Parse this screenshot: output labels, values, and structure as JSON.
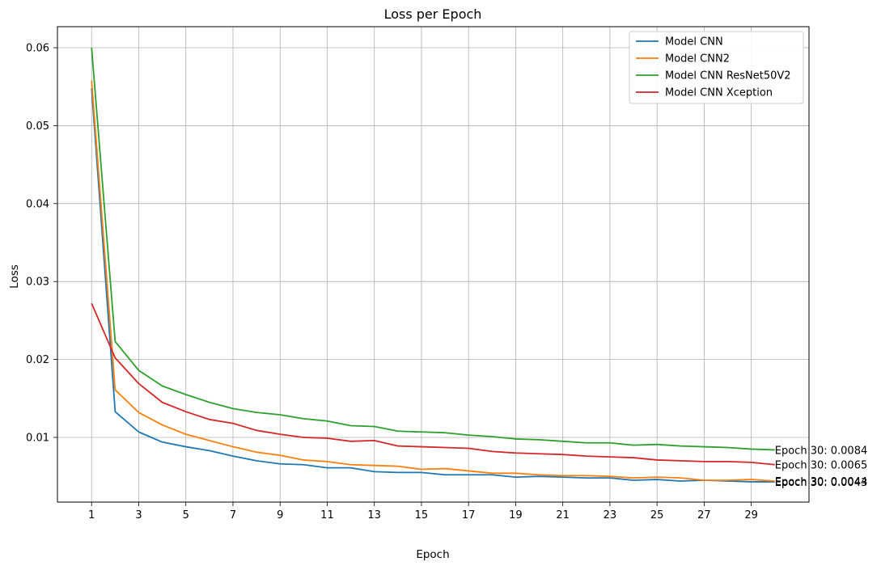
{
  "chart_data": {
    "type": "line",
    "title": "Loss per Epoch",
    "xlabel": "Epoch",
    "ylabel": "Loss",
    "xlim": [
      -0.45,
      31.45
    ],
    "ylim": [
      0.0017,
      0.0627
    ],
    "x_ticks": [
      1,
      3,
      5,
      7,
      9,
      11,
      13,
      15,
      17,
      19,
      21,
      23,
      25,
      27,
      29
    ],
    "y_ticks": [
      0.01,
      0.02,
      0.03,
      0.04,
      0.05,
      0.06
    ],
    "y_tick_labels": [
      "0.01",
      "0.02",
      "0.03",
      "0.04",
      "0.05",
      "0.06"
    ],
    "grid": true,
    "legend_position": "top-right",
    "x": [
      1,
      2,
      3,
      4,
      5,
      6,
      7,
      8,
      9,
      10,
      11,
      12,
      13,
      14,
      15,
      16,
      17,
      18,
      19,
      20,
      21,
      22,
      23,
      24,
      25,
      26,
      27,
      28,
      29,
      30
    ],
    "series": [
      {
        "name": "Model CNN",
        "color": "#1f77b4",
        "values": [
          0.0548,
          0.0133,
          0.0107,
          0.0094,
          0.0088,
          0.0083,
          0.0076,
          0.007,
          0.0066,
          0.0065,
          0.0061,
          0.0061,
          0.0056,
          0.0055,
          0.0055,
          0.0052,
          0.0052,
          0.0052,
          0.0049,
          0.005,
          0.0049,
          0.0048,
          0.0048,
          0.0045,
          0.0046,
          0.0044,
          0.0045,
          0.0044,
          0.0043,
          0.0043
        ]
      },
      {
        "name": "Model CNN2",
        "color": "#ff7f0e",
        "values": [
          0.0558,
          0.0161,
          0.0132,
          0.0116,
          0.0104,
          0.0096,
          0.0088,
          0.0081,
          0.0077,
          0.0071,
          0.0069,
          0.0065,
          0.0064,
          0.0063,
          0.0059,
          0.006,
          0.0057,
          0.0054,
          0.0054,
          0.0052,
          0.0051,
          0.0051,
          0.005,
          0.0048,
          0.0049,
          0.0048,
          0.0045,
          0.0045,
          0.0046,
          0.0044
        ]
      },
      {
        "name": "Model CNN ResNet50V2",
        "color": "#2ca02c",
        "values": [
          0.06,
          0.0223,
          0.0186,
          0.0166,
          0.0155,
          0.0145,
          0.0137,
          0.0132,
          0.0129,
          0.0124,
          0.0121,
          0.0115,
          0.0114,
          0.0108,
          0.0107,
          0.0106,
          0.0103,
          0.0101,
          0.0098,
          0.0097,
          0.0095,
          0.0093,
          0.0093,
          0.009,
          0.0091,
          0.0089,
          0.0088,
          0.0087,
          0.0085,
          0.0084
        ]
      },
      {
        "name": "Model CNN Xception",
        "color": "#d62728",
        "values": [
          0.0272,
          0.0202,
          0.0169,
          0.0145,
          0.0133,
          0.0123,
          0.0118,
          0.0109,
          0.0104,
          0.01,
          0.0099,
          0.0095,
          0.0096,
          0.0089,
          0.0088,
          0.0087,
          0.0086,
          0.0082,
          0.008,
          0.0079,
          0.0078,
          0.0076,
          0.0075,
          0.0074,
          0.0071,
          0.007,
          0.0069,
          0.0069,
          0.0068,
          0.0065
        ]
      }
    ],
    "annotations": [
      {
        "series": 2,
        "x": 30,
        "text": "Epoch 30: 0.0084"
      },
      {
        "series": 3,
        "x": 30,
        "text": "Epoch 30: 0.0065"
      },
      {
        "series": 0,
        "x": 30,
        "text": "Epoch 30: 0.0043"
      },
      {
        "series": 1,
        "x": 30,
        "text": "Epoch 30: 0.0044"
      }
    ]
  }
}
